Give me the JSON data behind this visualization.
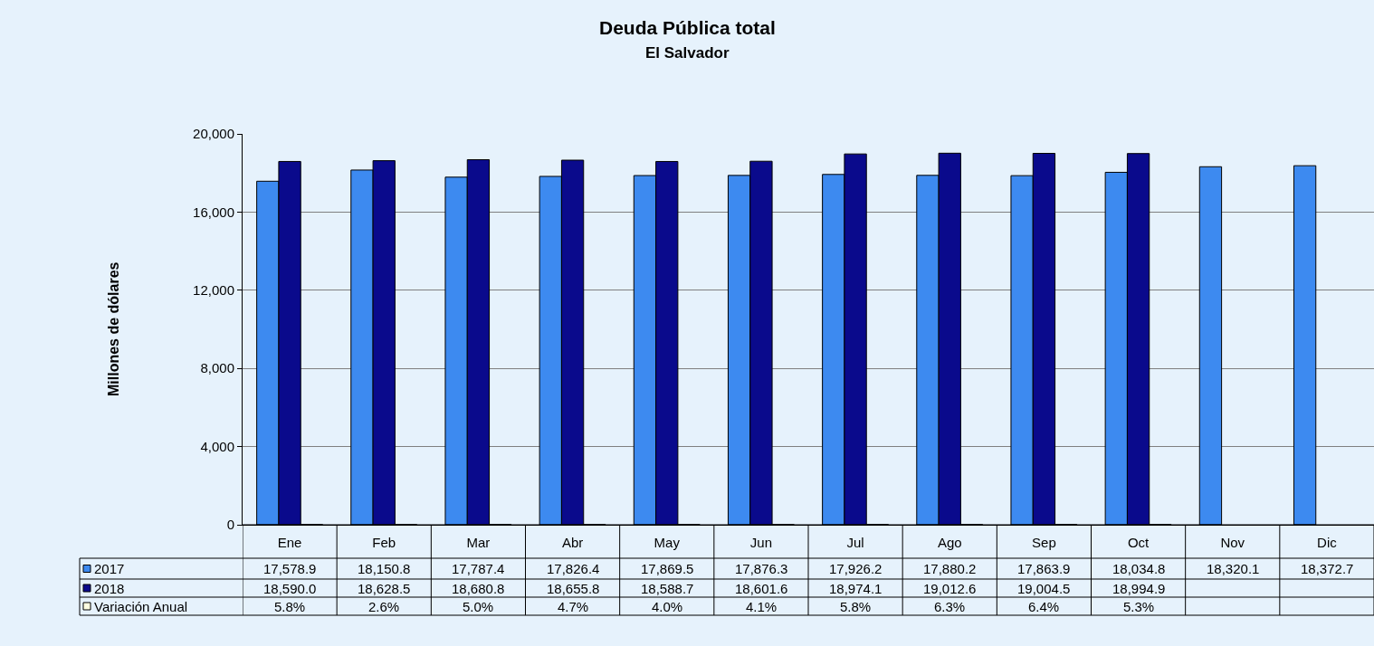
{
  "chart_data": {
    "type": "bar",
    "title": "Deuda Pública total",
    "subtitle": "El Salvador",
    "ylabel": "Millones de dólares",
    "categories": [
      "Ene",
      "Feb",
      "Mar",
      "Abr",
      "May",
      "Jun",
      "Jul",
      "Ago",
      "Sep",
      "Oct",
      "Nov",
      "Dic"
    ],
    "series": [
      {
        "name": "2017",
        "color": "#3d8af0",
        "values": [
          17578.9,
          18150.8,
          17787.4,
          17826.4,
          17869.5,
          17876.3,
          17926.2,
          17880.2,
          17863.9,
          18034.8,
          18320.1,
          18372.7
        ],
        "value_labels": [
          "17,578.9",
          "18,150.8",
          "17,787.4",
          "17,826.4",
          "17,869.5",
          "17,876.3",
          "17,926.2",
          "17,880.2",
          "17,863.9",
          "18,034.8",
          "18,320.1",
          "18,372.7"
        ]
      },
      {
        "name": "2018",
        "color": "#0a0a8c",
        "values": [
          18590.0,
          18628.5,
          18680.8,
          18655.8,
          18588.7,
          18601.6,
          18974.1,
          19012.6,
          19004.5,
          18994.9,
          null,
          null
        ],
        "value_labels": [
          "18,590.0",
          "18,628.5",
          "18,680.8",
          "18,655.8",
          "18,588.7",
          "18,601.6",
          "18,974.1",
          "19,012.6",
          "19,004.5",
          "18,994.9",
          null,
          null
        ]
      },
      {
        "name": "Variación Anual",
        "color": "#ffffe0",
        "values": [
          5.8,
          2.6,
          5.0,
          4.7,
          4.0,
          4.1,
          5.8,
          6.3,
          6.4,
          5.3,
          null,
          null
        ],
        "value_labels": [
          "5.8%",
          "2.6%",
          "5.0%",
          "4.7%",
          "4.0%",
          "4.1%",
          "5.8%",
          "6.3%",
          "6.4%",
          "5.3%",
          null,
          null
        ]
      }
    ],
    "ylim": [
      0,
      20000
    ],
    "yticks": [
      {
        "value": 0,
        "label": "0"
      },
      {
        "value": 4000,
        "label": "4,000"
      },
      {
        "value": 8000,
        "label": "8,000"
      },
      {
        "value": 12000,
        "label": "12,000"
      },
      {
        "value": 16000,
        "label": "16,000"
      },
      {
        "value": 20000,
        "label": "20,000"
      }
    ],
    "grid": "y",
    "legend": "bottom left"
  }
}
